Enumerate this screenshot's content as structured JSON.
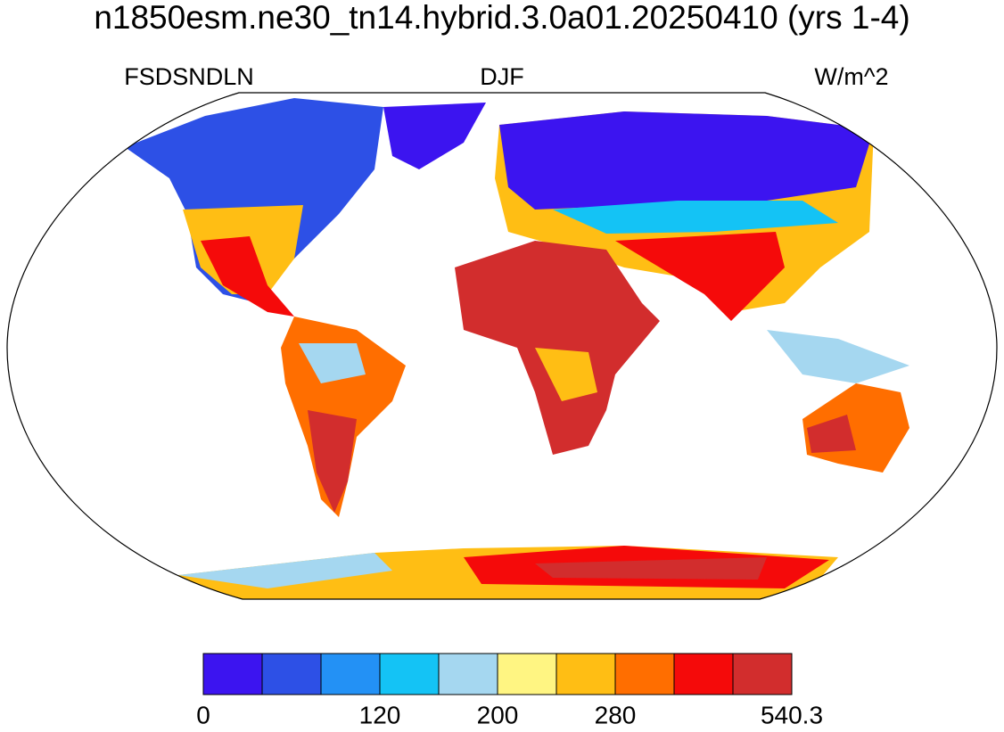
{
  "title": "n1850esm.ne30_tn14.hybrid.3.0a01.20250410 (yrs 1-4)",
  "labels": {
    "left": "FSDSNDLN",
    "center": "DJF",
    "right": "W/m^2"
  },
  "colorbar": {
    "colors": [
      "#3c14f0",
      "#2d50e6",
      "#2391f5",
      "#14c3f5",
      "#a5d7f0",
      "#fff582",
      "#ffbe14",
      "#ff6e00",
      "#f50a0a",
      "#d22d2d"
    ],
    "ticks": [
      0,
      120,
      200,
      280,
      540.3
    ]
  }
}
